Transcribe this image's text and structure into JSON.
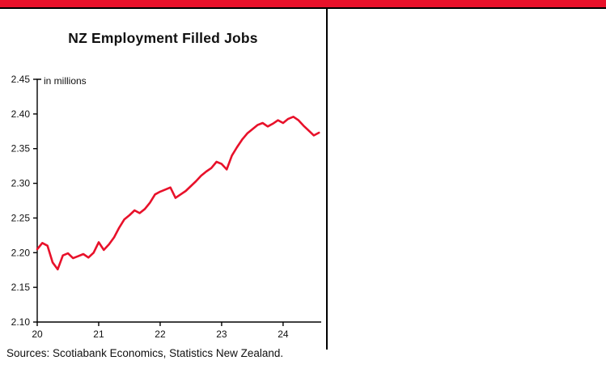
{
  "page": {
    "accent_red": "#e8112a",
    "divider_color": "#000000"
  },
  "chart_data": {
    "type": "line",
    "title": "NZ Employment Filled Jobs",
    "unit_label": "in millions",
    "xlabel": "",
    "ylabel": "",
    "legend": "none",
    "grid": false,
    "line_color": "#e8112a",
    "ylim": [
      2.1,
      2.45
    ],
    "xlim": [
      2020.0,
      2024.62
    ],
    "y_ticks": [
      "2.10",
      "2.15",
      "2.20",
      "2.25",
      "2.30",
      "2.35",
      "2.40",
      "2.45"
    ],
    "x_ticks": [
      {
        "value": 2020,
        "label": "20"
      },
      {
        "value": 2021,
        "label": "21"
      },
      {
        "value": 2022,
        "label": "22"
      },
      {
        "value": 2023,
        "label": "23"
      },
      {
        "value": 2024,
        "label": "24"
      }
    ],
    "series": [
      {
        "name": "NZ employment filled jobs (millions)",
        "points": [
          [
            2020.0,
            2.205
          ],
          [
            2020.083,
            2.214
          ],
          [
            2020.167,
            2.21
          ],
          [
            2020.25,
            2.186
          ],
          [
            2020.333,
            2.176
          ],
          [
            2020.417,
            2.196
          ],
          [
            2020.5,
            2.199
          ],
          [
            2020.583,
            2.192
          ],
          [
            2020.667,
            2.195
          ],
          [
            2020.75,
            2.198
          ],
          [
            2020.833,
            2.193
          ],
          [
            2020.917,
            2.2
          ],
          [
            2021.0,
            2.215
          ],
          [
            2021.083,
            2.204
          ],
          [
            2021.167,
            2.212
          ],
          [
            2021.25,
            2.222
          ],
          [
            2021.333,
            2.236
          ],
          [
            2021.417,
            2.248
          ],
          [
            2021.5,
            2.254
          ],
          [
            2021.583,
            2.261
          ],
          [
            2021.667,
            2.257
          ],
          [
            2021.75,
            2.263
          ],
          [
            2021.833,
            2.272
          ],
          [
            2021.917,
            2.284
          ],
          [
            2022.0,
            2.288
          ],
          [
            2022.083,
            2.291
          ],
          [
            2022.167,
            2.294
          ],
          [
            2022.25,
            2.279
          ],
          [
            2022.333,
            2.284
          ],
          [
            2022.417,
            2.289
          ],
          [
            2022.5,
            2.296
          ],
          [
            2022.583,
            2.303
          ],
          [
            2022.667,
            2.311
          ],
          [
            2022.75,
            2.317
          ],
          [
            2022.833,
            2.322
          ],
          [
            2022.917,
            2.331
          ],
          [
            2023.0,
            2.328
          ],
          [
            2023.083,
            2.32
          ],
          [
            2023.167,
            2.34
          ],
          [
            2023.25,
            2.352
          ],
          [
            2023.333,
            2.363
          ],
          [
            2023.417,
            2.372
          ],
          [
            2023.5,
            2.378
          ],
          [
            2023.583,
            2.384
          ],
          [
            2023.667,
            2.387
          ],
          [
            2023.75,
            2.382
          ],
          [
            2023.833,
            2.386
          ],
          [
            2023.917,
            2.391
          ],
          [
            2024.0,
            2.387
          ],
          [
            2024.083,
            2.393
          ],
          [
            2024.167,
            2.396
          ],
          [
            2024.25,
            2.391
          ],
          [
            2024.333,
            2.383
          ],
          [
            2024.417,
            2.376
          ],
          [
            2024.5,
            2.369
          ],
          [
            2024.583,
            2.373
          ]
        ]
      }
    ],
    "source": "Sources: Scotiabank Economics, Statistics New Zealand."
  }
}
